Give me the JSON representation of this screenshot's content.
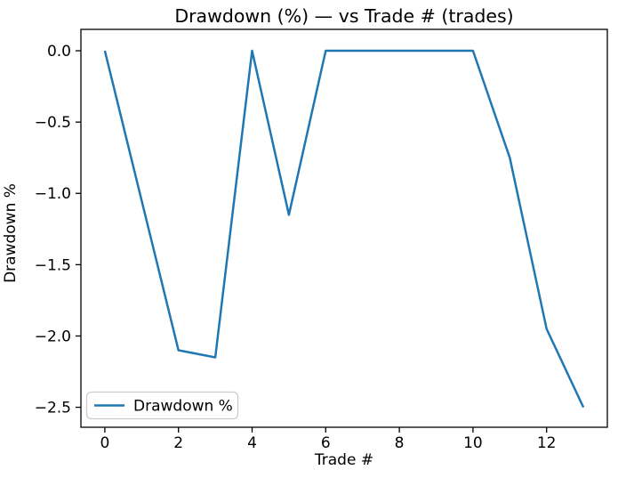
{
  "figure": {
    "background": "#ffffff"
  },
  "chart_data": {
    "type": "line",
    "title": "Drawdown (%) — vs Trade # (trades)",
    "xlabel": "Trade #",
    "ylabel": "Drawdown %",
    "x": [
      0,
      1,
      2,
      3,
      4,
      5,
      6,
      7,
      8,
      9,
      10,
      11,
      12,
      13
    ],
    "series": [
      {
        "name": "Drawdown %",
        "color": "#1f77b4",
        "values": [
          0.0,
          -1.05,
          -2.1,
          -2.15,
          0.0,
          -1.15,
          0.0,
          0.0,
          0.0,
          0.0,
          0.0,
          -0.75,
          -1.95,
          -2.5
        ]
      }
    ],
    "xlim": [
      -0.65,
      13.65
    ],
    "ylim": [
      -2.64,
      0.15
    ],
    "x_ticks": {
      "values": [
        0,
        2,
        4,
        6,
        8,
        10,
        12
      ],
      "labels": [
        "0",
        "2",
        "4",
        "6",
        "8",
        "10",
        "12"
      ]
    },
    "y_ticks": {
      "values": [
        0.0,
        -0.5,
        -1.0,
        -1.5,
        -2.0,
        -2.5
      ],
      "labels": [
        "0.0",
        "−0.5",
        "−1.0",
        "−1.5",
        "−2.0",
        "−2.5"
      ]
    },
    "grid": false,
    "legend": {
      "position": "lower left",
      "entries": [
        "Drawdown %"
      ]
    },
    "axis_color": "#000000",
    "text_color": "#000000",
    "legend_border_color": "#cccccc"
  }
}
